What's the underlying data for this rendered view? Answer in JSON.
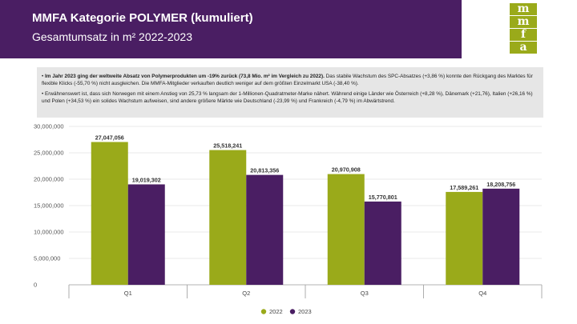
{
  "header": {
    "title": "MMFA Kategorie POLYMER (kumuliert)",
    "subtitle": "Gesamtumsatz in m² 2022-2023"
  },
  "logo": {
    "letters": [
      "m",
      "m",
      "f",
      "a"
    ]
  },
  "notes": {
    "b1_bold": "Im Jahr 2023 ging der weltweite Absatz von Polymerprodukten um -19% zurück (73,8 Mio. m² im Vergleich zu 2022).",
    "b1_rest": "Das stabile Wachstum des SPC-Absatzes (+3,86 %) konnte den Rückgang des Marktes für flexible Klicks (-55,70 %) nicht ausgleichen. Die MMFA-Mitglieder verkauften deutlich weniger auf dem größten Einzelmarkt USA (-38,40 %).",
    "b2": "Erwähnenswert ist, dass sich Norwegen mit einem Anstieg von 25,73 % langsam der 1-Millionen-Quadratmeter-Marke nähert. Während einige Länder wie Österreich (+8,28 %), Dänemark (+21,76), Italien (+26,16 %) und Polen (+34,53 %) ein solides Wachstum aufweisen, sind andere größere Märkte wie Deutschland (-23,99 %) und Frankreich (-4,79 %) im Abwärtstrend."
  },
  "chart_data": {
    "type": "bar",
    "categories": [
      "Q1",
      "Q2",
      "Q3",
      "Q4"
    ],
    "series": [
      {
        "name": "2022",
        "values": [
          27047056,
          25518241,
          20970908,
          17589261
        ],
        "color": "#9aaa1a"
      },
      {
        "name": "2023",
        "values": [
          19019302,
          20813356,
          15770801,
          18208756
        ],
        "color": "#4a1e63"
      }
    ],
    "data_labels": [
      [
        "27,047,056",
        "25,518,241",
        "20,970,908",
        "17,589,261"
      ],
      [
        "19,019,302",
        "20,813,356",
        "15,770,801",
        "18,208,756"
      ]
    ],
    "yticks": [
      "0",
      "5,000,000",
      "10,000,000",
      "15,000,000",
      "20,000,000",
      "25,000,000",
      "30,000,000"
    ],
    "ylim": [
      0,
      30000000
    ],
    "grid": true,
    "legend_position": "bottom"
  }
}
